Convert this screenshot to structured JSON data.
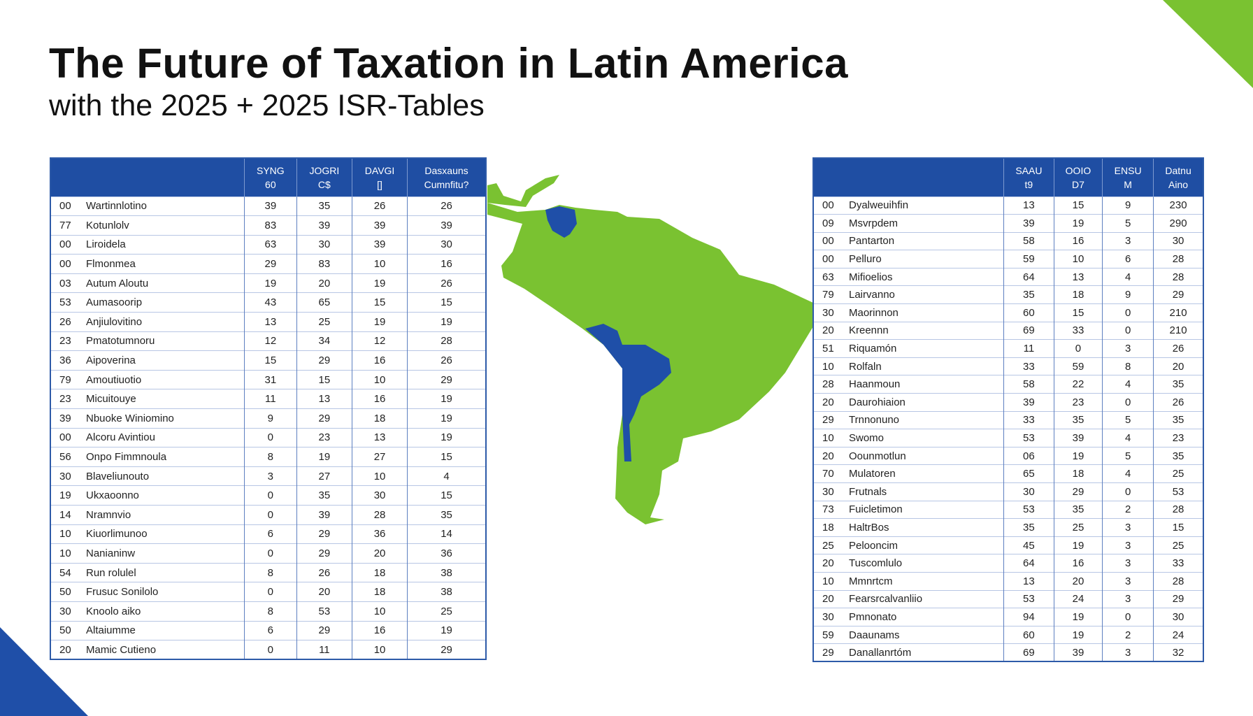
{
  "title": "The Future of Taxation in Latin America",
  "subtitle": "with the 2025 + 2025 ISR-Tables",
  "colors": {
    "accent_green": "#7ac231",
    "accent_blue": "#1f4fa8",
    "header_blue": "#1f4ea3"
  },
  "left_table": {
    "headers": [
      [
        "",
        ""
      ],
      [
        "SYNG",
        "60"
      ],
      [
        "JOGRI",
        "C$"
      ],
      [
        "DAVGI",
        "[]"
      ],
      [
        "Dasxauns",
        "Cumnfitu?"
      ]
    ],
    "rows": [
      [
        "00",
        "Wartinnlotino",
        "39",
        "35",
        "26",
        "26"
      ],
      [
        "77",
        "Kotunlolv",
        "83",
        "39",
        "39",
        "39"
      ],
      [
        "00",
        "Liroidela",
        "63",
        "30",
        "39",
        "30"
      ],
      [
        "00",
        "Flmonmea",
        "29",
        "83",
        "10",
        "16"
      ],
      [
        "03",
        "Autum Aloutu",
        "19",
        "20",
        "19",
        "26"
      ],
      [
        "53",
        "Aumasoorip",
        "43",
        "65",
        "15",
        "15"
      ],
      [
        "26",
        "Anjiulovitino",
        "13",
        "25",
        "19",
        "19"
      ],
      [
        "23",
        "Pmatotumnoru",
        "12",
        "34",
        "12",
        "28"
      ],
      [
        "36",
        "Aipoverina",
        "15",
        "29",
        "16",
        "26"
      ],
      [
        "79",
        "Amoutiuotio",
        "31",
        "15",
        "10",
        "29"
      ],
      [
        "23",
        "Micuitouye",
        "11",
        "13",
        "16",
        "19"
      ],
      [
        "39",
        "Nbuoke Winiomino",
        "9",
        "29",
        "18",
        "19"
      ],
      [
        "00",
        "Alcoru Avintiou",
        "0",
        "23",
        "13",
        "19"
      ],
      [
        "56",
        "Onpo Fimmnoula",
        "8",
        "19",
        "27",
        "15"
      ],
      [
        "30",
        "Blaveliunouto",
        "3",
        "27",
        "10",
        "4"
      ],
      [
        "19",
        "Ukxaoonno",
        "0",
        "35",
        "30",
        "15"
      ],
      [
        "14",
        "Nramnvio",
        "0",
        "39",
        "28",
        "35"
      ],
      [
        "10",
        "Kiuorlimunoo",
        "6",
        "29",
        "36",
        "14"
      ],
      [
        "10",
        "Nanianinw",
        "0",
        "29",
        "20",
        "36"
      ],
      [
        "54",
        "Run rolulel",
        "8",
        "26",
        "18",
        "38"
      ],
      [
        "50",
        "Frusuc Sonilolo",
        "0",
        "20",
        "18",
        "38"
      ],
      [
        "30",
        "Knoolo aiko",
        "8",
        "53",
        "10",
        "25"
      ],
      [
        "50",
        "Altaiumme",
        "6",
        "29",
        "16",
        "19"
      ],
      [
        "20",
        "Mamic Cutieno",
        "0",
        "11",
        "10",
        "29"
      ]
    ]
  },
  "right_table": {
    "headers": [
      [
        "",
        ""
      ],
      [
        "SAAU",
        "t9"
      ],
      [
        "OOIO",
        "D7"
      ],
      [
        "ENSU",
        "M"
      ],
      [
        "Datnu",
        "Aino"
      ]
    ],
    "rows": [
      [
        "00",
        "Dyalweuihfin",
        "13",
        "15",
        "9",
        "230"
      ],
      [
        "09",
        "Msvrpdem",
        "39",
        "19",
        "5",
        "290"
      ],
      [
        "00",
        "Pantarton",
        "58",
        "16",
        "3",
        "30"
      ],
      [
        "00",
        "Pelluro",
        "59",
        "10",
        "6",
        "28"
      ],
      [
        "63",
        "Mifioelios",
        "64",
        "13",
        "4",
        "28"
      ],
      [
        "79",
        "Lairvanno",
        "35",
        "18",
        "9",
        "29"
      ],
      [
        "30",
        "Maorinnon",
        "60",
        "15",
        "0",
        "210"
      ],
      [
        "20",
        "Kreennn",
        "69",
        "33",
        "0",
        "210"
      ],
      [
        "51",
        "Riquamón",
        "11",
        "0",
        "3",
        "26"
      ],
      [
        "10",
        "Rolfaln",
        "33",
        "59",
        "8",
        "20"
      ],
      [
        "28",
        "Haanmoun",
        "58",
        "22",
        "4",
        "35"
      ],
      [
        "20",
        "Daurohiaion",
        "39",
        "23",
        "0",
        "26"
      ],
      [
        "29",
        "Trnnonuno",
        "33",
        "35",
        "5",
        "35"
      ],
      [
        "10",
        "Swomo",
        "53",
        "39",
        "4",
        "23"
      ],
      [
        "20",
        "Oounmotlun",
        "06",
        "19",
        "5",
        "35"
      ],
      [
        "70",
        "Mulatoren",
        "65",
        "18",
        "4",
        "25"
      ],
      [
        "30",
        "Frutnals",
        "30",
        "29",
        "0",
        "53"
      ],
      [
        "73",
        "Fuicletimon",
        "53",
        "35",
        "2",
        "28"
      ],
      [
        "18",
        "HaltrBos",
        "35",
        "25",
        "3",
        "15"
      ],
      [
        "25",
        "Pelooncim",
        "45",
        "19",
        "3",
        "25"
      ],
      [
        "20",
        "Tuscomlulo",
        "64",
        "16",
        "3",
        "33"
      ],
      [
        "10",
        "Mmnrtcm",
        "13",
        "20",
        "3",
        "28"
      ],
      [
        "20",
        "Fearsrcalvanliio",
        "53",
        "24",
        "3",
        "29"
      ],
      [
        "30",
        "Pmnonato",
        "94",
        "19",
        "0",
        "30"
      ],
      [
        "59",
        "Daaunams",
        "60",
        "19",
        "2",
        "24"
      ],
      [
        "29",
        "Danallanrtóm",
        "69",
        "39",
        "3",
        "32"
      ]
    ]
  },
  "map": {
    "region": "South America",
    "highlight_color": "#1f4fa8",
    "base_color": "#7ac231"
  }
}
